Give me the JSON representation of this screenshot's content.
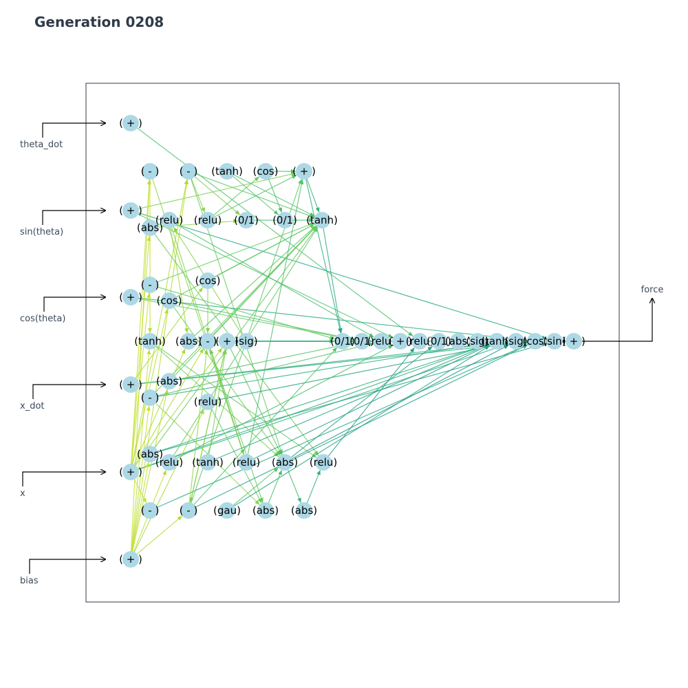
{
  "title": "Generation 0208",
  "inputs": [
    "theta_dot",
    "sin(theta)",
    "cos(theta)",
    "x_dot",
    "x",
    "bias"
  ],
  "output": "force",
  "nodes": [
    {
      "id": "in0",
      "label": "( + )"
    },
    {
      "id": "in1",
      "label": "( + )"
    },
    {
      "id": "in2",
      "label": "( + )"
    },
    {
      "id": "in3",
      "label": "( + )"
    },
    {
      "id": "in4",
      "label": "( + )"
    },
    {
      "id": "in5",
      "label": "( + )"
    },
    {
      "id": "m1",
      "label": "( - )"
    },
    {
      "id": "m2",
      "label": "( - )"
    },
    {
      "id": "t1",
      "label": "(tanh)"
    },
    {
      "id": "c1",
      "label": "(cos)"
    },
    {
      "id": "p1",
      "label": "( + )"
    },
    {
      "id": "r1",
      "label": "(relu)"
    },
    {
      "id": "a1",
      "label": "(abs)"
    },
    {
      "id": "r2",
      "label": "(relu)"
    },
    {
      "id": "b1",
      "label": "(0/1)"
    },
    {
      "id": "b2",
      "label": "(0/1)"
    },
    {
      "id": "t2",
      "label": "(tanh)"
    },
    {
      "id": "m3",
      "label": "( - )"
    },
    {
      "id": "c2",
      "label": "(cos)"
    },
    {
      "id": "c3",
      "label": "(cos)"
    },
    {
      "id": "t3",
      "label": "(tanh)"
    },
    {
      "id": "a2",
      "label": "(abs)"
    },
    {
      "id": "m4",
      "label": "( - )"
    },
    {
      "id": "p2",
      "label": "( + )"
    },
    {
      "id": "s1",
      "label": "(sig)"
    },
    {
      "id": "a3",
      "label": "(abs)"
    },
    {
      "id": "m5",
      "label": "( - )"
    },
    {
      "id": "r3",
      "label": "(relu)"
    },
    {
      "id": "a4",
      "label": "(abs)"
    },
    {
      "id": "r4",
      "label": "(relu)"
    },
    {
      "id": "t4",
      "label": "(tanh)"
    },
    {
      "id": "r5",
      "label": "(relu)"
    },
    {
      "id": "a5",
      "label": "(abs)"
    },
    {
      "id": "r6",
      "label": "(relu)"
    },
    {
      "id": "m6",
      "label": "( - )"
    },
    {
      "id": "m7",
      "label": "( - )"
    },
    {
      "id": "g1",
      "label": "(gau)"
    },
    {
      "id": "a6",
      "label": "(abs)"
    },
    {
      "id": "a7",
      "label": "(abs)"
    },
    {
      "id": "o1",
      "label": "(0/1)"
    },
    {
      "id": "o2",
      "label": "(0/1)"
    },
    {
      "id": "o3",
      "label": "(relu)"
    },
    {
      "id": "o4",
      "label": "( + )"
    },
    {
      "id": "o5",
      "label": "(relu)"
    },
    {
      "id": "o6",
      "label": "(0/1)"
    },
    {
      "id": "o7",
      "label": "(abs)"
    },
    {
      "id": "o8",
      "label": "(sig)"
    },
    {
      "id": "o9",
      "label": "(tanh)"
    },
    {
      "id": "o10",
      "label": "(sig)"
    },
    {
      "id": "o11",
      "label": "(cos)"
    },
    {
      "id": "o12",
      "label": "(sin)"
    },
    {
      "id": "out",
      "label": "( + )"
    }
  ],
  "edges": [
    [
      "in0",
      "o5"
    ],
    [
      "in1",
      "o4"
    ],
    [
      "in1",
      "o12"
    ],
    [
      "in1",
      "p1"
    ],
    [
      "in2",
      "o2"
    ],
    [
      "in2",
      "o11"
    ],
    [
      "in3",
      "o10"
    ],
    [
      "in3",
      "o11"
    ],
    [
      "in3",
      "c2"
    ],
    [
      "in4",
      "m1"
    ],
    [
      "in4",
      "m2"
    ],
    [
      "in4",
      "a1"
    ],
    [
      "in4",
      "c3"
    ],
    [
      "in4",
      "m3"
    ],
    [
      "in4",
      "a2"
    ],
    [
      "in4",
      "m4"
    ],
    [
      "in4",
      "m6"
    ],
    [
      "in4",
      "o9"
    ],
    [
      "in4",
      "o10"
    ],
    [
      "in4",
      "p2"
    ],
    [
      "in5",
      "m2"
    ],
    [
      "in5",
      "m7"
    ],
    [
      "in5",
      "a4"
    ],
    [
      "in5",
      "m5"
    ],
    [
      "in5",
      "a3"
    ],
    [
      "in5",
      "r4"
    ],
    [
      "in5",
      "t3"
    ],
    [
      "in5",
      "m1"
    ],
    [
      "in5",
      "r3"
    ],
    [
      "m1",
      "t3"
    ],
    [
      "m1",
      "r5"
    ],
    [
      "m2",
      "r2"
    ],
    [
      "m2",
      "b1"
    ],
    [
      "m2",
      "t2"
    ],
    [
      "m2",
      "a5"
    ],
    [
      "t1",
      "b2"
    ],
    [
      "t1",
      "t2"
    ],
    [
      "c1",
      "p1"
    ],
    [
      "c1",
      "b2"
    ],
    [
      "p1",
      "t2"
    ],
    [
      "p1",
      "o1"
    ],
    [
      "r1",
      "a2"
    ],
    [
      "r1",
      "o3"
    ],
    [
      "r1",
      "r5"
    ],
    [
      "a1",
      "r6"
    ],
    [
      "a1",
      "b1"
    ],
    [
      "r2",
      "c1"
    ],
    [
      "r2",
      "p1"
    ],
    [
      "b1",
      "t2"
    ],
    [
      "t2",
      "o1"
    ],
    [
      "m3",
      "o1"
    ],
    [
      "m3",
      "t2"
    ],
    [
      "c2",
      "m4"
    ],
    [
      "c2",
      "t2"
    ],
    [
      "c3",
      "t2"
    ],
    [
      "c3",
      "o2"
    ],
    [
      "c3",
      "a5"
    ],
    [
      "t3",
      "r6"
    ],
    [
      "t3",
      "a5"
    ],
    [
      "a2",
      "t2"
    ],
    [
      "a2",
      "o3"
    ],
    [
      "m4",
      "t2"
    ],
    [
      "m4",
      "a6"
    ],
    [
      "p2",
      "a5"
    ],
    [
      "p2",
      "o1"
    ],
    [
      "p2",
      "o2"
    ],
    [
      "p2",
      "m7"
    ],
    [
      "s1",
      "o4"
    ],
    [
      "s1",
      "o6"
    ],
    [
      "s1",
      "r1"
    ],
    [
      "a3",
      "o2"
    ],
    [
      "a3",
      "t2"
    ],
    [
      "m5",
      "o3"
    ],
    [
      "m5",
      "t2"
    ],
    [
      "m5",
      "a6"
    ],
    [
      "m5",
      "o9"
    ],
    [
      "r3",
      "a6"
    ],
    [
      "r3",
      "o10"
    ],
    [
      "a4",
      "o9"
    ],
    [
      "a4",
      "o12"
    ],
    [
      "a4",
      "t2"
    ],
    [
      "r4",
      "t2"
    ],
    [
      "r4",
      "o4"
    ],
    [
      "t4",
      "o9"
    ],
    [
      "t4",
      "p2"
    ],
    [
      "r5",
      "o9"
    ],
    [
      "r5",
      "m4"
    ],
    [
      "r5",
      "p1"
    ],
    [
      "a5",
      "o10"
    ],
    [
      "a5",
      "a7"
    ],
    [
      "a5",
      "o6"
    ],
    [
      "r6",
      "o5"
    ],
    [
      "m6",
      "o11"
    ],
    [
      "m7",
      "o11"
    ],
    [
      "m7",
      "p2"
    ],
    [
      "m7",
      "p1"
    ],
    [
      "m7",
      "m4"
    ],
    [
      "m7",
      "o1"
    ],
    [
      "g1",
      "a5"
    ],
    [
      "g1",
      "o9"
    ],
    [
      "a6",
      "a5"
    ],
    [
      "a7",
      "r6"
    ],
    [
      "o12",
      "out"
    ]
  ],
  "colors": {
    "node_fill": "#add8e6",
    "frame": "#2f3b4a",
    "title": "#2f3b4a",
    "edge_palette": [
      "#440154",
      "#3b528b",
      "#21908c",
      "#27ad81",
      "#5dc863",
      "#aadc32",
      "#fde725"
    ]
  }
}
